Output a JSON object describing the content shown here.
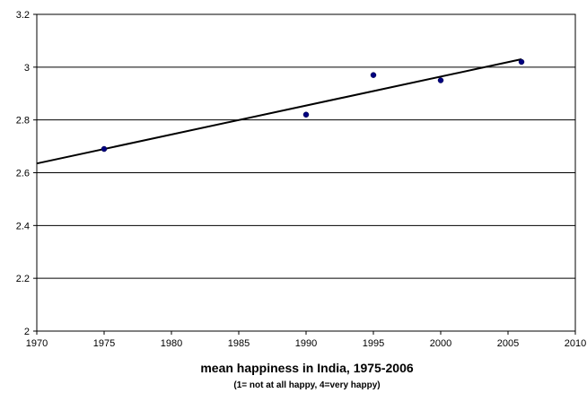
{
  "chart_data": {
    "type": "scatter",
    "title": "",
    "xlabel": "mean happiness in India, 1975-2006",
    "xlabel_sub": "(1= not at all happy,  4=very happy)",
    "ylabel": "",
    "xlim": [
      1970,
      2010
    ],
    "ylim": [
      2,
      3.2
    ],
    "x_ticks": [
      1970,
      1975,
      1980,
      1985,
      1990,
      1995,
      2000,
      2005,
      2010
    ],
    "y_ticks": [
      2,
      2.2,
      2.4,
      2.6,
      2.8,
      3,
      3.2
    ],
    "y_tick_labels": [
      "2",
      "2.2",
      "2.4",
      "2.6",
      "2.8",
      "3",
      "3.2"
    ],
    "grid": "horizontal",
    "legend": "none",
    "series": [
      {
        "x": [
          1975,
          1990,
          1995,
          2000,
          2006
        ],
        "y": [
          2.69,
          2.82,
          2.97,
          2.95,
          3.02
        ],
        "color": "#000080"
      }
    ],
    "trendline": {
      "type": "linear",
      "x": [
        1970,
        2006
      ],
      "y": [
        2.635,
        3.03
      ],
      "color": "#000000"
    }
  }
}
